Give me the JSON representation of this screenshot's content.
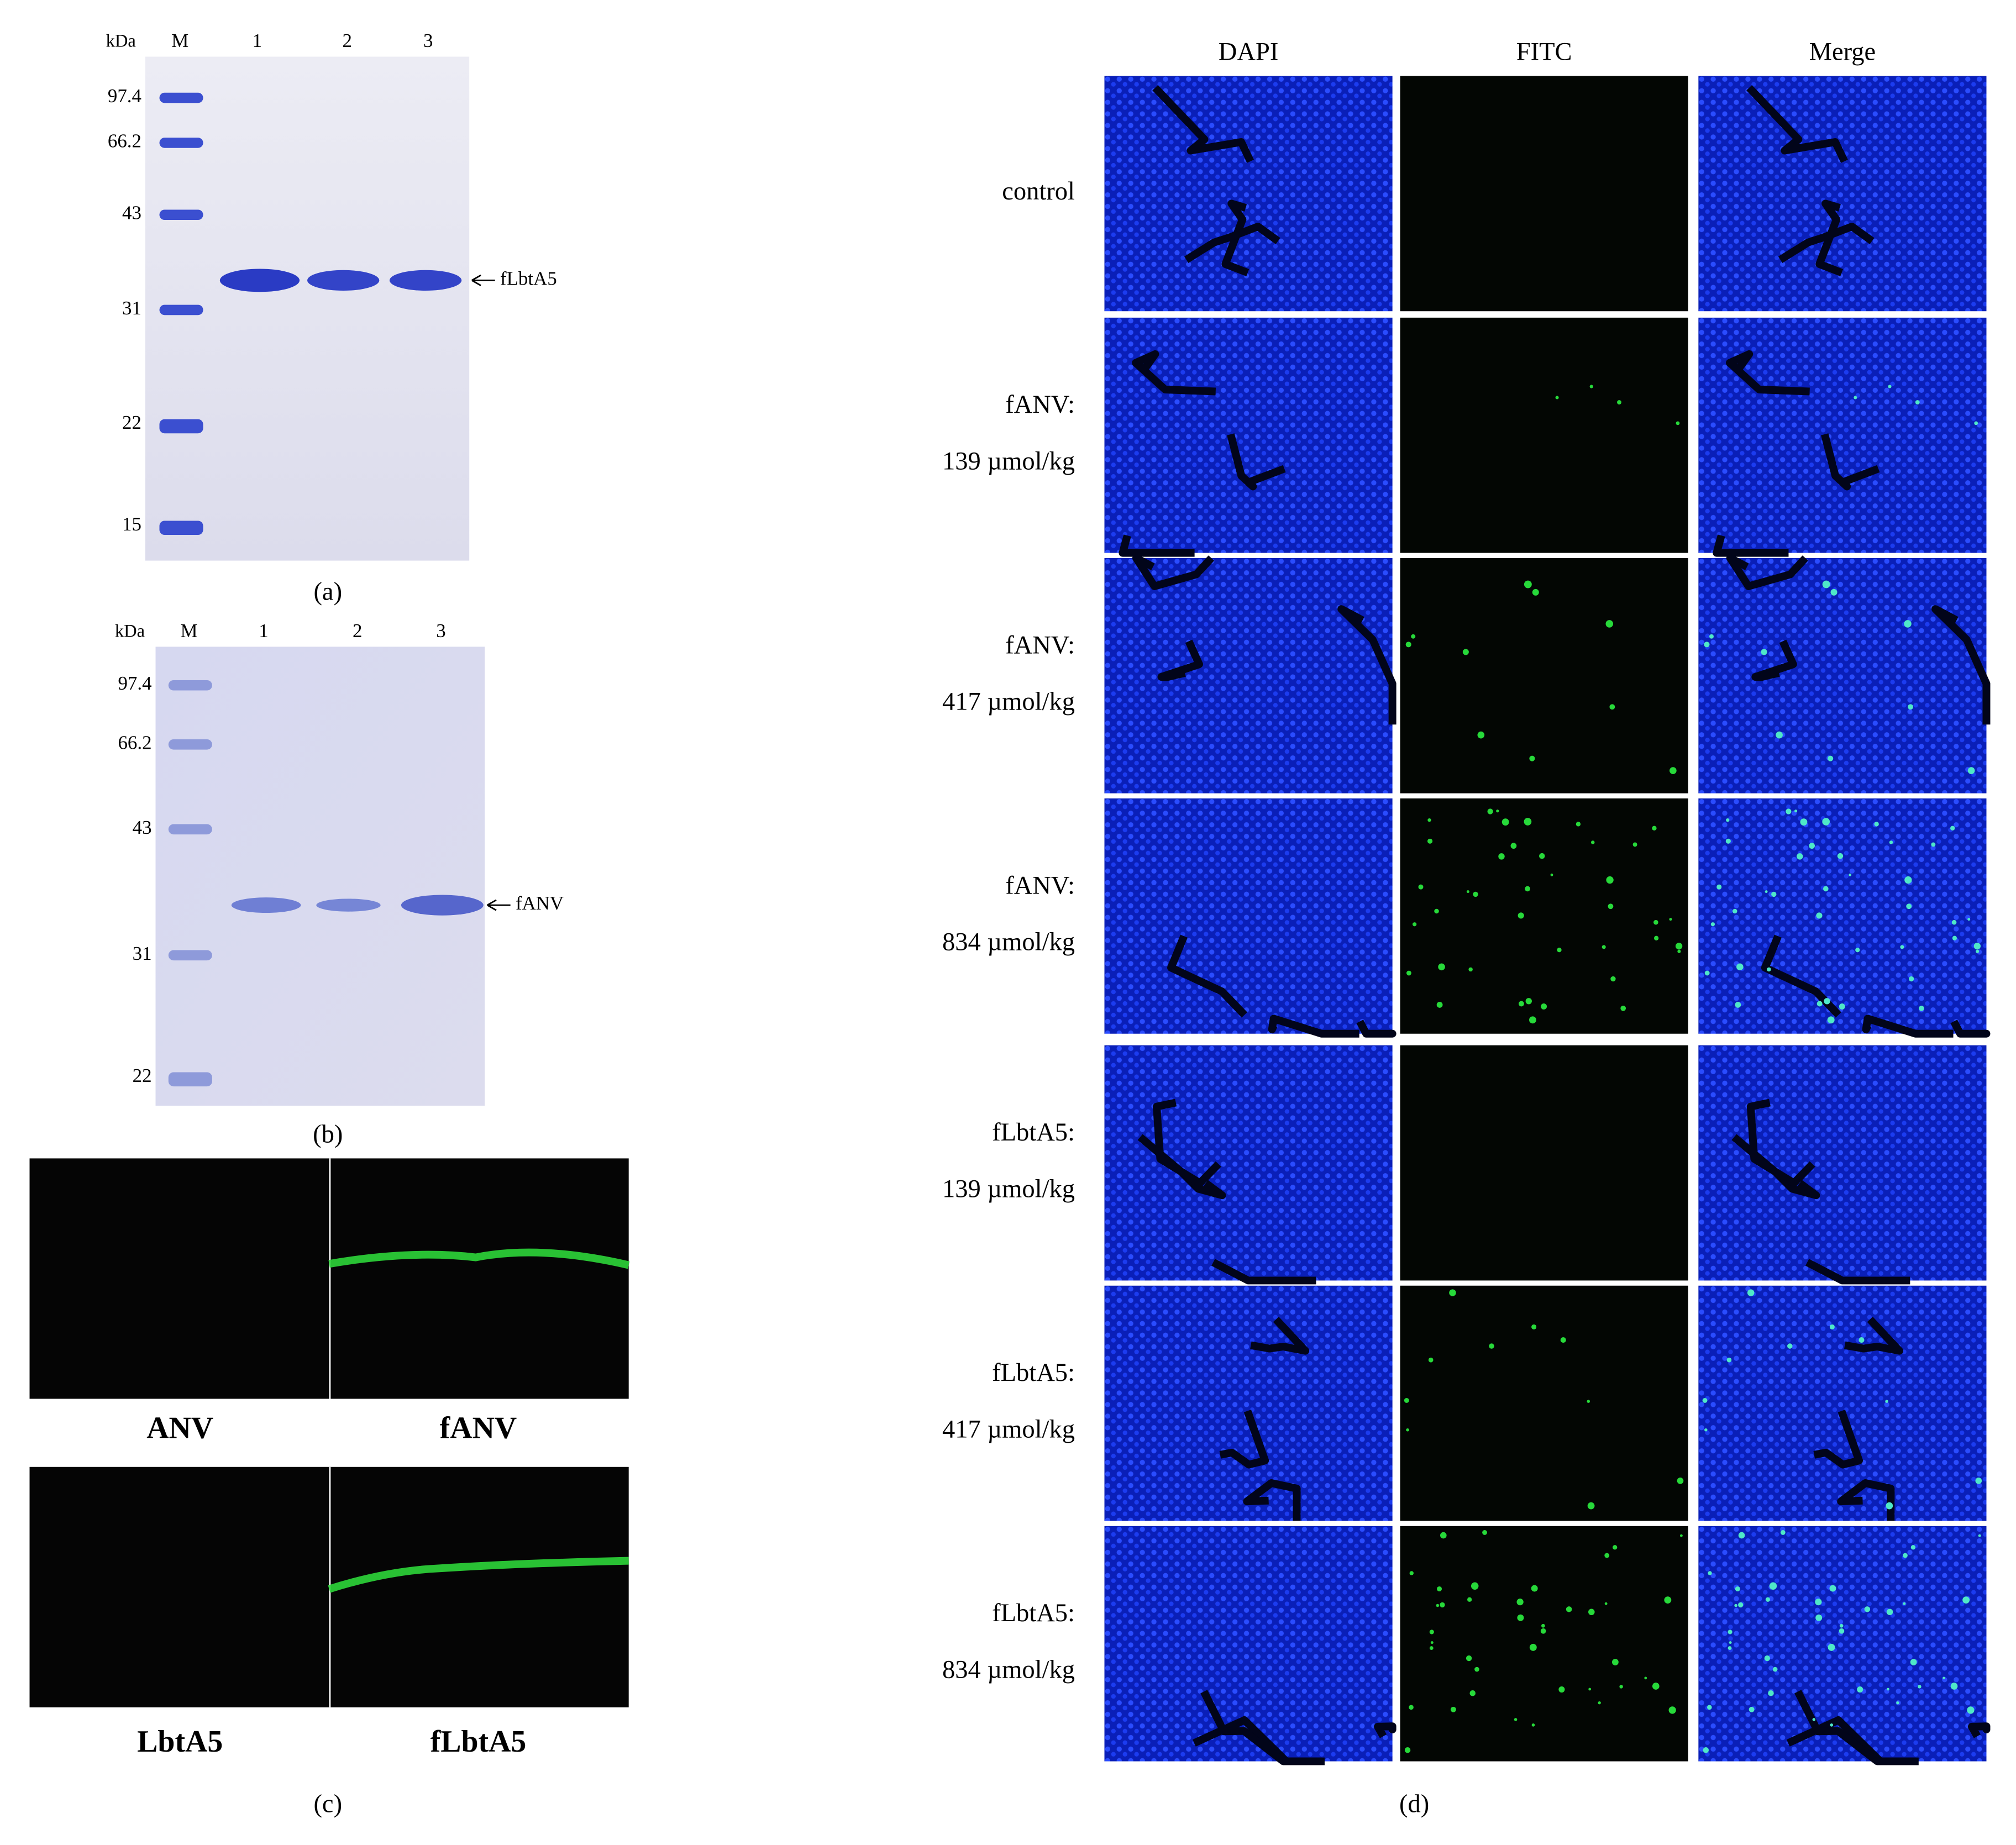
{
  "panel_a": {
    "unit": "kDa",
    "lanes": [
      "M",
      "1",
      "2",
      "3"
    ],
    "markers": [
      "97.4",
      "66.2",
      "43",
      "31",
      "22",
      "15"
    ],
    "band_label": "fLbtA5",
    "caption": "(a)"
  },
  "panel_b": {
    "unit": "kDa",
    "lanes": [
      "M",
      "1",
      "2",
      "3"
    ],
    "markers": [
      "97.4",
      "66.2",
      "43",
      "31",
      "22"
    ],
    "band_label": "fANV",
    "caption": "(b)"
  },
  "panel_c": {
    "labels": [
      "ANV",
      "fANV",
      "LbtA5",
      "fLbtA5"
    ],
    "caption": "(c)"
  },
  "panel_d": {
    "columns": [
      "DAPI",
      "FITC",
      "Merge"
    ],
    "rows": [
      [
        "control"
      ],
      [
        "fANV:",
        "139 µmol/kg"
      ],
      [
        "fANV:",
        "417 µmol/kg"
      ],
      [
        "fANV:",
        "834 µmol/kg"
      ],
      [
        "fLbtA5:",
        "139 µmol/kg"
      ],
      [
        "fLbtA5:",
        "417 µmol/kg"
      ],
      [
        "fLbtA5:",
        "834 µmol/kg"
      ]
    ],
    "caption": "(d)"
  }
}
